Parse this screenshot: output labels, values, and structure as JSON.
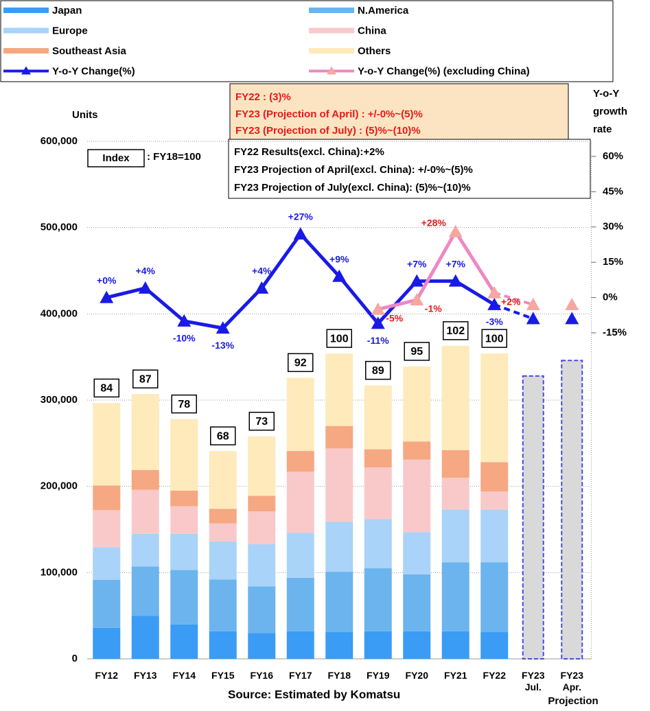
{
  "chart_data": {
    "type": "bar",
    "y_label": "Units",
    "y2_label": "Y-o-Y growth rate",
    "categories": [
      "FY12",
      "FY13",
      "FY14",
      "FY15",
      "FY16",
      "FY17",
      "FY18",
      "FY19",
      "FY20",
      "FY21",
      "FY22",
      "FY23 Jul.",
      "FY23 Apr."
    ],
    "projection_label": "Projection",
    "source": "Source: Estimated by Komatsu",
    "series": [
      {
        "name": "Japan",
        "color": "#3a9cf4",
        "values": [
          36000,
          50000,
          40000,
          32000,
          30000,
          32000,
          31000,
          32000,
          32000,
          32000,
          31000,
          null,
          null
        ]
      },
      {
        "name": "N.America",
        "color": "#6cb4ee",
        "values": [
          55500,
          57000,
          63000,
          60000,
          54000,
          62000,
          70000,
          73000,
          66000,
          80000,
          81000,
          null,
          null
        ]
      },
      {
        "name": "Europe",
        "color": "#a9d3f8",
        "values": [
          38000,
          38000,
          42000,
          44000,
          49000,
          52000,
          58000,
          57000,
          49000,
          61000,
          61000,
          null,
          null
        ]
      },
      {
        "name": "China",
        "color": "#f9c9c9",
        "values": [
          43000,
          51000,
          32000,
          21000,
          38000,
          71000,
          85000,
          60000,
          84000,
          37000,
          21000,
          null,
          null
        ]
      },
      {
        "name": "Southeast Asia",
        "color": "#f5a882",
        "values": [
          28500,
          23000,
          18000,
          17000,
          18000,
          24000,
          26000,
          21000,
          21000,
          32000,
          34000,
          null,
          null
        ]
      },
      {
        "name": "Others",
        "color": "#feeabb",
        "values": [
          95500,
          88000,
          83000,
          67000,
          69000,
          85000,
          84000,
          74000,
          87000,
          121000,
          126000,
          null,
          null
        ]
      }
    ],
    "projection": {
      "color": "#d9d9d9",
      "border": "#4a4ae0",
      "values": [
        null,
        null,
        null,
        null,
        null,
        null,
        null,
        null,
        null,
        null,
        null,
        328000,
        346000
      ]
    },
    "index_title": "Index",
    "index_note": ": FY18=100",
    "index_values": [
      84,
      87,
      78,
      68,
      73,
      92,
      100,
      89,
      95,
      102,
      100,
      null,
      null
    ],
    "lines": [
      {
        "name": "Y-o-Y Change(%)",
        "color": "#1a1ae6",
        "axis": "y2",
        "label_color": "#1a1ae6",
        "values": [
          0,
          4,
          -10,
          -13,
          4,
          27,
          9,
          -11,
          7,
          7,
          -3,
          -9,
          -9
        ],
        "value_labels": [
          "+0%",
          "+4%",
          "-10%",
          "-13%",
          "+4%",
          "+27%",
          "+9%",
          "-11%",
          "+7%",
          "+7%",
          "-3%",
          null,
          null
        ]
      },
      {
        "name": "Y-o-Y Change(%) (excluding China)",
        "color": "#ee88c2",
        "axis": "y2",
        "label_color": "#e81818",
        "values": [
          null,
          null,
          null,
          null,
          null,
          null,
          null,
          -5,
          -1,
          28,
          2,
          -3,
          -3
        ],
        "value_labels": [
          null,
          null,
          null,
          null,
          null,
          null,
          null,
          "-5%",
          "-1%",
          "+28%",
          "+2%",
          null,
          null
        ]
      }
    ],
    "notes_red": [
      "FY22 : (3)%",
      "FY23 (Projection of April) : +/-0%~(5)%",
      "FY23 (Projection of July) : (5)%~(10)%"
    ],
    "notes_black": [
      "FY22 Results(excl. China):+2%",
      "FY23 Projection of April(excl. China): +/-0%~(5)%",
      "FY23 Projection of July(excl. China): (5)%~(10)%"
    ],
    "ylim": [
      0,
      600000
    ],
    "yticks": [
      0,
      {
        "value": 100000,
        "label": "100,000"
      },
      {
        "value": 200000,
        "label": "200,000"
      },
      {
        "value": 300000,
        "label": "300,000"
      },
      {
        "value": 400000,
        "label": "400,000"
      },
      {
        "value": 500000,
        "label": "500,000"
      },
      {
        "value": 600000,
        "label": "600,000"
      }
    ],
    "y2lim": [
      -153.6,
      66.4
    ],
    "y2ticks": [
      {
        "value": -15,
        "label": "-15%"
      },
      {
        "value": 0,
        "label": "0%"
      },
      {
        "value": 15,
        "label": "15%"
      },
      {
        "value": 30,
        "label": "30%"
      },
      {
        "value": 45,
        "label": "45%"
      },
      {
        "value": 60,
        "label": "60%"
      }
    ],
    "grid": true
  }
}
